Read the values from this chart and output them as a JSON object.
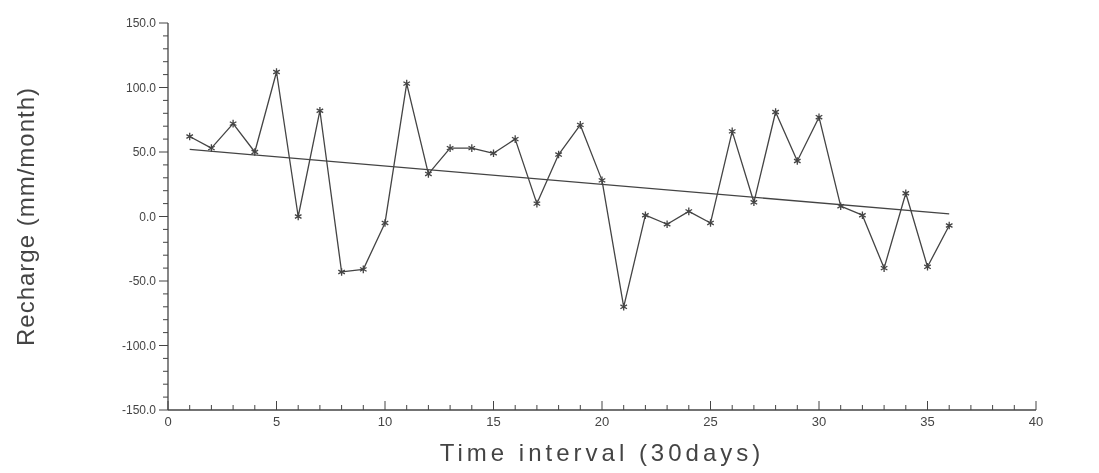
{
  "chart_data": {
    "type": "line",
    "xlabel": "Time interval (30days)",
    "ylabel": "Recharge (mm/month)",
    "xlim": [
      0,
      40
    ],
    "ylim": [
      -150,
      150
    ],
    "xticks": [
      {
        "value": 0,
        "label": "0"
      },
      {
        "value": 1,
        "label": null
      },
      {
        "value": 2,
        "label": null
      },
      {
        "value": 3,
        "label": null
      },
      {
        "value": 4,
        "label": null
      },
      {
        "value": 5,
        "label": "5"
      },
      {
        "value": 6,
        "label": null
      },
      {
        "value": 7,
        "label": null
      },
      {
        "value": 8,
        "label": null
      },
      {
        "value": 9,
        "label": null
      },
      {
        "value": 10,
        "label": "10"
      },
      {
        "value": 11,
        "label": null
      },
      {
        "value": 12,
        "label": null
      },
      {
        "value": 13,
        "label": null
      },
      {
        "value": 14,
        "label": null
      },
      {
        "value": 15,
        "label": "15"
      },
      {
        "value": 16,
        "label": null
      },
      {
        "value": 17,
        "label": null
      },
      {
        "value": 18,
        "label": null
      },
      {
        "value": 19,
        "label": null
      },
      {
        "value": 20,
        "label": "20"
      },
      {
        "value": 21,
        "label": null
      },
      {
        "value": 22,
        "label": null
      },
      {
        "value": 23,
        "label": null
      },
      {
        "value": 24,
        "label": null
      },
      {
        "value": 25,
        "label": "25"
      },
      {
        "value": 26,
        "label": null
      },
      {
        "value": 27,
        "label": null
      },
      {
        "value": 28,
        "label": null
      },
      {
        "value": 29,
        "label": null
      },
      {
        "value": 30,
        "label": "30"
      },
      {
        "value": 31,
        "label": null
      },
      {
        "value": 32,
        "label": null
      },
      {
        "value": 33,
        "label": null
      },
      {
        "value": 34,
        "label": null
      },
      {
        "value": 35,
        "label": "35"
      },
      {
        "value": 36,
        "label": null
      },
      {
        "value": 37,
        "label": null
      },
      {
        "value": 38,
        "label": null
      },
      {
        "value": 39,
        "label": null
      },
      {
        "value": 40,
        "label": "40"
      }
    ],
    "yticks": [
      {
        "value": -150,
        "label": "-150.0"
      },
      {
        "value": -140,
        "label": null
      },
      {
        "value": -130,
        "label": null
      },
      {
        "value": -120,
        "label": null
      },
      {
        "value": -110,
        "label": null
      },
      {
        "value": -100,
        "label": "-100.0"
      },
      {
        "value": -90,
        "label": null
      },
      {
        "value": -80,
        "label": null
      },
      {
        "value": -70,
        "label": null
      },
      {
        "value": -60,
        "label": null
      },
      {
        "value": -50,
        "label": "-50.0"
      },
      {
        "value": -40,
        "label": null
      },
      {
        "value": -30,
        "label": null
      },
      {
        "value": -20,
        "label": null
      },
      {
        "value": -10,
        "label": null
      },
      {
        "value": 0,
        "label": "0.0"
      },
      {
        "value": 10,
        "label": null
      },
      {
        "value": 20,
        "label": null
      },
      {
        "value": 30,
        "label": null
      },
      {
        "value": 40,
        "label": null
      },
      {
        "value": 50,
        "label": "50.0"
      },
      {
        "value": 60,
        "label": null
      },
      {
        "value": 70,
        "label": null
      },
      {
        "value": 80,
        "label": null
      },
      {
        "value": 90,
        "label": null
      },
      {
        "value": 100,
        "label": "100.0"
      },
      {
        "value": 110,
        "label": null
      },
      {
        "value": 120,
        "label": null
      },
      {
        "value": 130,
        "label": null
      },
      {
        "value": 140,
        "label": null
      },
      {
        "value": 150,
        "label": "150.0"
      }
    ],
    "grid": false,
    "series": [
      {
        "color": "#444444",
        "marker": "cross",
        "x": [
          1,
          2,
          3,
          4,
          5,
          6,
          7,
          8,
          9,
          10,
          11,
          12,
          13,
          14,
          15,
          16,
          17,
          18,
          19,
          20,
          21,
          22,
          23,
          24,
          25,
          26,
          27,
          28,
          29,
          30,
          31,
          32,
          33,
          34,
          35,
          36
        ],
        "values": [
          62,
          53,
          72,
          50,
          112,
          0,
          82,
          -43,
          -41,
          -5,
          103,
          33,
          53,
          53,
          49,
          60,
          10,
          48,
          71,
          28,
          -70,
          1,
          -6,
          4,
          -5,
          66,
          11,
          81,
          43,
          77,
          8,
          1,
          -40,
          18,
          -39,
          -7
        ]
      },
      {
        "color": "#444444",
        "marker": "none",
        "x": [
          1,
          36
        ],
        "values": [
          52,
          2
        ]
      }
    ]
  }
}
